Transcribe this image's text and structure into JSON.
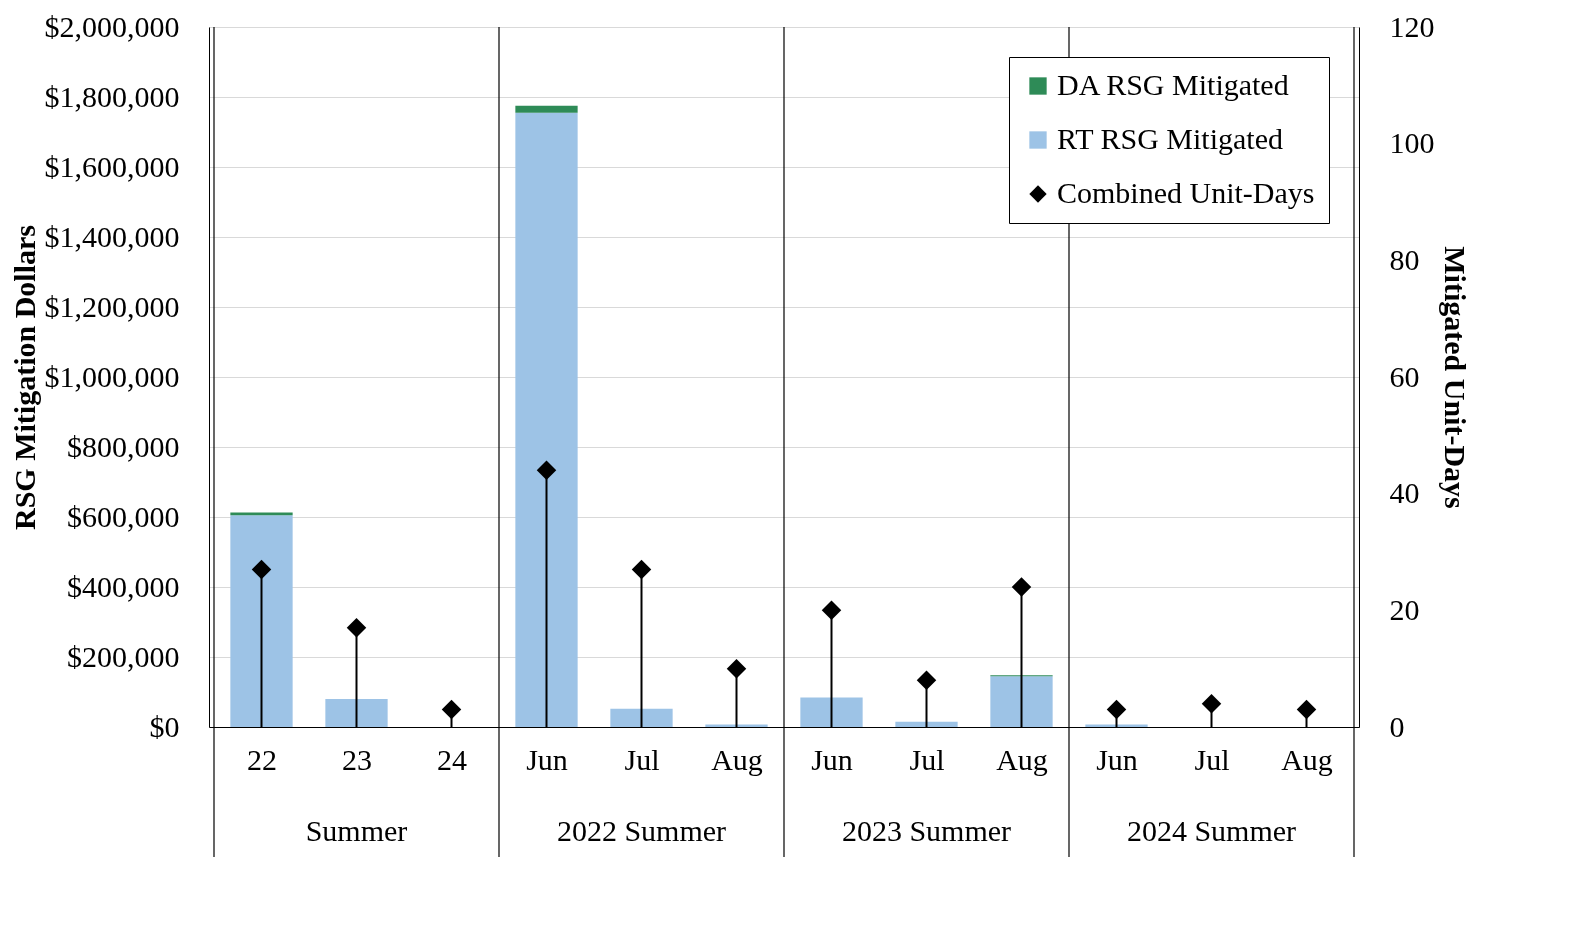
{
  "chart_data": {
    "type": "bar",
    "stacked": true,
    "categories": [
      "22",
      "23",
      "24",
      "Jun",
      "Jul",
      "Aug",
      "Jun",
      "Jul",
      "Aug",
      "Jun",
      "Jul",
      "Aug"
    ],
    "series": [
      {
        "name": "RT RSG Mitigated",
        "color": "#9dc3e6",
        "values": [
          605000,
          80000,
          0,
          1755000,
          52000,
          7000,
          84000,
          15000,
          145000,
          7000,
          0,
          0
        ]
      },
      {
        "name": "DA RSG Mitigated",
        "color": "#2e8b57",
        "values": [
          8000,
          0,
          0,
          20000,
          0,
          0,
          0,
          0,
          3000,
          0,
          0,
          0
        ]
      },
      {
        "name": "Combined Unit-Days",
        "type": "lollipop",
        "axis": "y2",
        "color": "#000000",
        "values": [
          27,
          17,
          3,
          44,
          27,
          10,
          20,
          8,
          24,
          3,
          4,
          3
        ]
      }
    ],
    "ylabel": "RSG Mitigation Dollars",
    "y2label": "Mitigated Unit-Days",
    "ylim": [
      0,
      2000000
    ],
    "yticks": [
      {
        "value": 0,
        "label": "$0"
      },
      {
        "value": 200000,
        "label": "$200,000"
      },
      {
        "value": 400000,
        "label": "$400,000"
      },
      {
        "value": 600000,
        "label": "$600,000"
      },
      {
        "value": 800000,
        "label": "$800,000"
      },
      {
        "value": 1000000,
        "label": "$1,000,000"
      },
      {
        "value": 1200000,
        "label": "$1,200,000"
      },
      {
        "value": 1400000,
        "label": "$1,400,000"
      },
      {
        "value": 1600000,
        "label": "$1,600,000"
      },
      {
        "value": 1800000,
        "label": "$1,800,000"
      },
      {
        "value": 2000000,
        "label": "$2,000,000"
      }
    ],
    "y2lim": [
      0,
      120
    ],
    "y2ticks": [
      0,
      20,
      40,
      60,
      80,
      100,
      120
    ],
    "annotations": [
      "Summer",
      "2022 Summer",
      "2023 Summer",
      "2024 Summer"
    ],
    "grid": "y",
    "legend": "top right",
    "marker": "diamond"
  }
}
